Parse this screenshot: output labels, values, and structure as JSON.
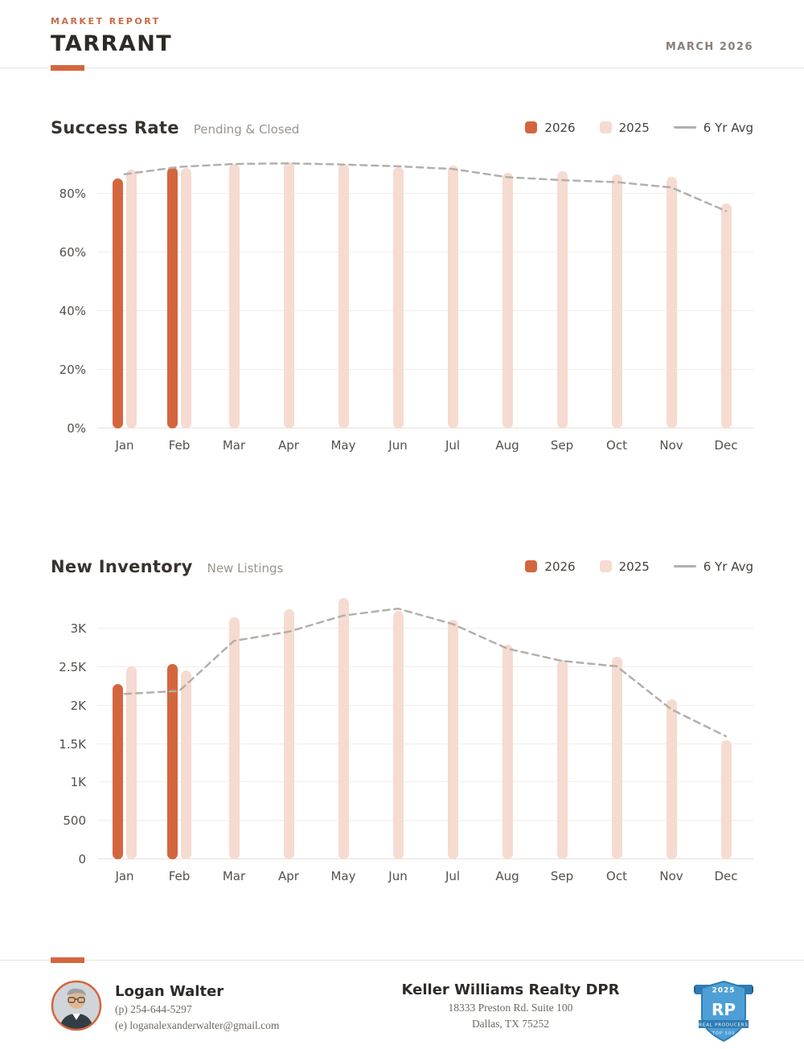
{
  "header": {
    "eyebrow": "MARKET REPORT",
    "title": "TARRANT",
    "date": "MARCH 2026"
  },
  "colors": {
    "accent": "#D4663E",
    "light": "#F6DBD0",
    "avg_line": "#B3AFAB",
    "badge_blue": "#4E9FD6",
    "badge_blue_dark": "#2E7CB3"
  },
  "chart_data": [
    {
      "type": "bar",
      "title": "Success Rate",
      "subtitle": "Pending & Closed",
      "categories": [
        "Jan",
        "Feb",
        "Mar",
        "Apr",
        "May",
        "Jun",
        "Jul",
        "Aug",
        "Sep",
        "Oct",
        "Nov",
        "Dec"
      ],
      "series": [
        {
          "name": "2026",
          "color_key": "accent",
          "values": [
            85,
            89,
            null,
            null,
            null,
            null,
            null,
            null,
            null,
            null,
            null,
            null
          ]
        },
        {
          "name": "2025",
          "color_key": "light",
          "values": [
            88,
            88.5,
            90,
            90.5,
            90,
            89,
            89.5,
            87,
            87.5,
            86.5,
            85.5,
            76.5
          ]
        }
      ],
      "avg_line": {
        "name": "6 Yr Avg",
        "values": [
          86.5,
          89,
          90,
          90.2,
          89.8,
          89.2,
          88.3,
          85.5,
          84.5,
          83.8,
          82,
          74
        ]
      },
      "yticks": [
        {
          "label": "0%",
          "value": 0
        },
        {
          "label": "20%",
          "value": 20
        },
        {
          "label": "40%",
          "value": 40
        },
        {
          "label": "60%",
          "value": 60
        },
        {
          "label": "80%",
          "value": 80
        }
      ],
      "ymax": 93,
      "ylim": [
        0,
        93
      ],
      "unit": "%",
      "grid": true,
      "legend_position": "top-right"
    },
    {
      "type": "bar",
      "title": "New Inventory",
      "subtitle": "New Listings",
      "categories": [
        "Jan",
        "Feb",
        "Mar",
        "Apr",
        "May",
        "Jun",
        "Jul",
        "Aug",
        "Sep",
        "Oct",
        "Nov",
        "Dec"
      ],
      "series": [
        {
          "name": "2026",
          "color_key": "accent",
          "values": [
            2280,
            2540,
            null,
            null,
            null,
            null,
            null,
            null,
            null,
            null,
            null,
            null
          ]
        },
        {
          "name": "2025",
          "color_key": "light",
          "values": [
            2510,
            2460,
            3150,
            3250,
            3400,
            3230,
            3120,
            2790,
            2590,
            2630,
            2080,
            1550
          ]
        }
      ],
      "avg_line": {
        "name": "6 Yr Avg",
        "values": [
          2150,
          2190,
          2840,
          2960,
          3170,
          3260,
          3060,
          2740,
          2580,
          2510,
          1950,
          1600
        ]
      },
      "yticks": [
        {
          "label": "0",
          "value": 0
        },
        {
          "label": "500",
          "value": 500
        },
        {
          "label": "1K",
          "value": 1000
        },
        {
          "label": "1.5K",
          "value": 1500
        },
        {
          "label": "2K",
          "value": 2000
        },
        {
          "label": "2.5K",
          "value": 2500
        },
        {
          "label": "3K",
          "value": 3000
        }
      ],
      "ymax": 3450,
      "ylim": [
        0,
        3450
      ],
      "unit": "listings",
      "grid": true,
      "legend_position": "top-right"
    }
  ],
  "footer": {
    "agent": {
      "name": "Logan Walter",
      "phone": "(p) 254-644-5297",
      "email": "(e) loganalexanderwalter@gmail.com"
    },
    "office": {
      "name": "Keller Williams Realty DPR",
      "address1": "18333 Preston Rd. Suite 100",
      "address2": "Dallas, TX 75252"
    },
    "badge": {
      "year": "2025",
      "initials": "RP",
      "label": "REAL PRODUCERS",
      "sub": "TOP 500"
    }
  }
}
